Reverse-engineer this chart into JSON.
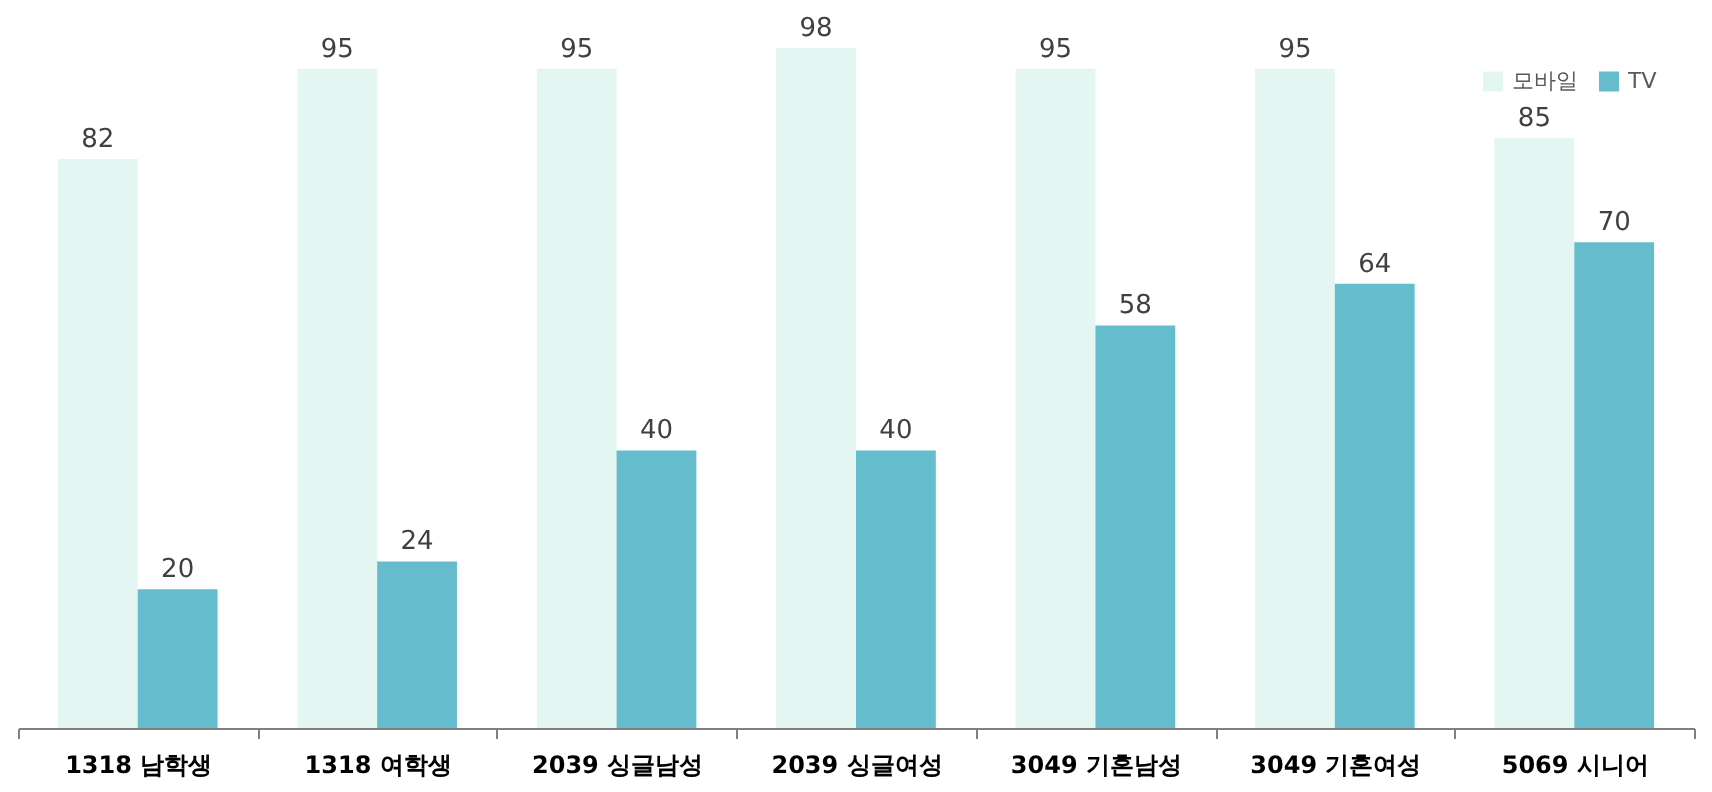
{
  "chart_data": {
    "type": "bar",
    "categories": [
      "1318 남학생",
      "1318 여학생",
      "2039 싱글남성",
      "2039 싱글여성",
      "3049 기혼남성",
      "3049 기혼여성",
      "5069 시니어"
    ],
    "series": [
      {
        "name": "모바일",
        "color": "#e3f6f1",
        "values": [
          82,
          95,
          95,
          98,
          95,
          95,
          85
        ]
      },
      {
        "name": "TV",
        "color": "#65bccd",
        "values": [
          20,
          24,
          40,
          40,
          58,
          64,
          70
        ]
      }
    ],
    "data_labels": true,
    "legend": "top right"
  }
}
